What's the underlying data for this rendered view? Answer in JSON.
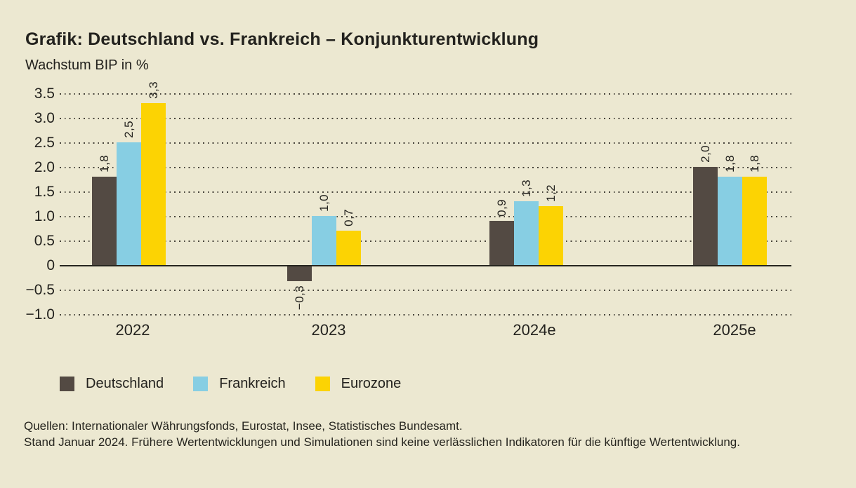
{
  "header": {
    "title": "Grafik: Deutschland vs. Frankreich – Konjunkturentwicklung",
    "subtitle": "Wachstum BIP in %"
  },
  "chart_data": {
    "type": "bar",
    "title": "Grafik: Deutschland vs. Frankreich – Konjunkturentwicklung",
    "ylabel": "Wachstum BIP in %",
    "categories": [
      "2022",
      "2023",
      "2024e",
      "2025e"
    ],
    "series": [
      {
        "name": "Deutschland",
        "color": "#534a43",
        "values": [
          1.8,
          -0.3,
          0.9,
          2.0
        ],
        "labels": [
          "1,8",
          "−0,3",
          "0,9",
          "2,0"
        ]
      },
      {
        "name": "Frankreich",
        "color": "#87cee3",
        "values": [
          2.5,
          1.0,
          1.3,
          1.8
        ],
        "labels": [
          "2,5",
          "1,0",
          "1,3",
          "1,8"
        ]
      },
      {
        "name": "Eurozone",
        "color": "#fcd303",
        "values": [
          3.3,
          0.7,
          1.2,
          1.8
        ],
        "labels": [
          "3,3",
          "0,7",
          "1,2",
          "1,8"
        ]
      }
    ],
    "ylim": [
      -1.0,
      3.5
    ],
    "ytick_step": 0.5,
    "yticks": [
      {
        "value": 3.5,
        "label": "3.5"
      },
      {
        "value": 3.0,
        "label": "3.0"
      },
      {
        "value": 2.5,
        "label": "2.5"
      },
      {
        "value": 2.0,
        "label": "2.0"
      },
      {
        "value": 1.5,
        "label": "1.5"
      },
      {
        "value": 1.0,
        "label": "1.0"
      },
      {
        "value": 0.5,
        "label": "0.5"
      },
      {
        "value": 0,
        "label": "0"
      },
      {
        "value": -0.5,
        "label": "−0.5"
      },
      {
        "value": -1.0,
        "label": "−1.0"
      }
    ],
    "grid": "horizontal-dotted",
    "legend_position": "bottom-left"
  },
  "footer": {
    "line1": "Quellen: Internationaler Währungsfonds, Eurostat, Insee, Statistisches Bundesamt.",
    "line2": "Stand Januar 2024. Frühere Wertentwicklungen und Simulationen sind keine verlässlichen Indikatoren für die künftige Wertentwicklung."
  },
  "colors": {
    "background": "#ece8d1",
    "text": "#23221e",
    "gridline": "#47443b",
    "zero_axis": "#26251f",
    "deutschland": "#534a43",
    "frankreich": "#87cee3",
    "eurozone": "#fcd303"
  }
}
